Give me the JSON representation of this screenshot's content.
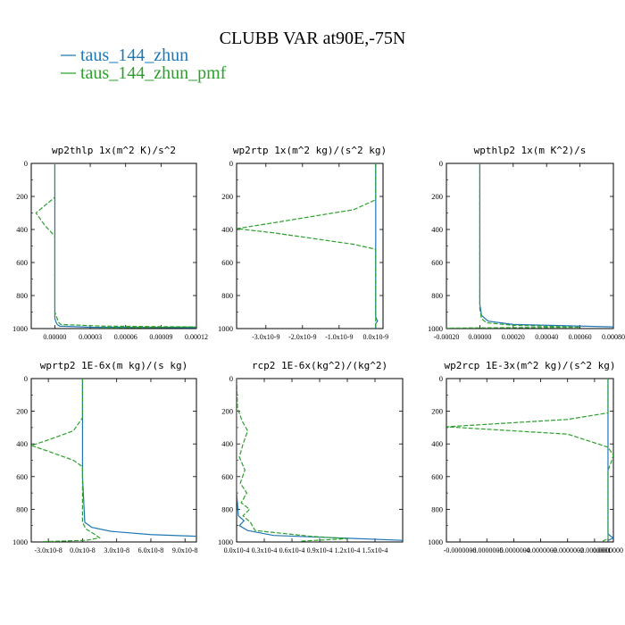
{
  "title": "CLUBB VAR at90E,-75N",
  "legend": [
    {
      "label": "taus_144_zhun",
      "color": "#1f77b4"
    },
    {
      "label": "taus_144_zhun_pmf",
      "color": "#2ca02c"
    }
  ],
  "chart_data": [
    {
      "type": "line",
      "title": "wp2thlp  1x(m^2 K)/s^2",
      "xlim": [
        -2e-05,
        0.00012
      ],
      "ylim": [
        1000,
        0
      ],
      "xticks": [
        "0.00000",
        "0.00003",
        "0.00006",
        "0.00009",
        "0.00012"
      ],
      "xtick_values": [
        0,
        3e-05,
        6e-05,
        9e-05,
        0.00012
      ],
      "yticks": [
        0,
        200,
        400,
        600,
        800,
        1000
      ],
      "series": [
        {
          "name": "taus_144_zhun",
          "x": [
            0,
            0,
            0,
            0,
            0,
            0,
            1e-06,
            2e-06,
            4e-06,
            3e-05,
            0.00012
          ],
          "y": [
            0,
            200,
            400,
            500,
            800,
            940,
            960,
            975,
            985,
            992,
            995
          ]
        },
        {
          "name": "taus_144_zhun_pmf",
          "x": [
            0,
            0,
            -1.6e-05,
            -8e-06,
            0,
            0,
            0,
            3e-06,
            5e-06,
            4e-05,
            0.00012,
            4e-05
          ],
          "y": [
            0,
            205,
            300,
            380,
            440,
            500,
            900,
            960,
            975,
            985,
            990,
            996
          ]
        }
      ]
    },
    {
      "type": "line",
      "title": "wp2rtp  1x(m^2 kg)/(s^2 kg)",
      "xlim": [
        -3.8e-09,
        2e-10
      ],
      "ylim": [
        1000,
        0
      ],
      "xticks": [
        "-3.0x10-9",
        "-2.0x10-9",
        "-1.0x10-9",
        "0.0x10-9"
      ],
      "xtick_values": [
        -3e-09,
        -2e-09,
        -1e-09,
        0
      ],
      "yticks": [
        0,
        200,
        400,
        600,
        800,
        1000
      ],
      "series": [
        {
          "name": "taus_144_zhun",
          "x": [
            0,
            0,
            0,
            0,
            0,
            5e-11,
            0,
            0
          ],
          "y": [
            0,
            200,
            400,
            600,
            930,
            955,
            970,
            1000
          ]
        },
        {
          "name": "taus_144_zhun_pmf",
          "x": [
            0,
            0,
            -6e-10,
            -2.8e-09,
            -3.8e-09,
            -2.8e-09,
            -6e-10,
            0,
            0,
            0,
            0
          ],
          "y": [
            0,
            220,
            280,
            360,
            395,
            420,
            490,
            520,
            930,
            970,
            1000
          ]
        }
      ]
    },
    {
      "type": "line",
      "title": "wpthlp2  1x(m K^2)/s",
      "xlim": [
        -0.0002,
        0.0008
      ],
      "ylim": [
        1000,
        0
      ],
      "xticks": [
        "-0.00020",
        "0.00000",
        "0.00020",
        "0.00040",
        "0.00060",
        "0.00080"
      ],
      "xtick_values": [
        -0.0002,
        0,
        0.0002,
        0.0004,
        0.0006,
        0.0008
      ],
      "yticks": [
        0,
        200,
        400,
        600,
        800,
        1000
      ],
      "series": [
        {
          "name": "taus_144_zhun",
          "x": [
            0,
            0,
            0,
            1e-05,
            5e-05,
            0.0002,
            0.0008
          ],
          "y": [
            0,
            600,
            850,
            920,
            955,
            975,
            990
          ]
        },
        {
          "name": "taus_144_zhun_pmf",
          "x": [
            0,
            0,
            0,
            1e-05,
            4e-05,
            0.0002,
            0.0006,
            -0.0002
          ],
          "y": [
            0,
            600,
            880,
            940,
            965,
            980,
            992,
            997
          ]
        }
      ]
    },
    {
      "type": "line",
      "title": "wprtp2  1E-6x(m kg)/(s kg)",
      "xlim": [
        -4.5e-08,
        1e-07
      ],
      "ylim": [
        1000,
        0
      ],
      "xticks": [
        "-3.0x10-8",
        "0.0x10-8",
        "3.0x10-8",
        "6.0x10-8",
        "9.0x10-8"
      ],
      "xtick_values": [
        -3e-08,
        0,
        3e-08,
        6e-08,
        9e-08
      ],
      "yticks": [
        0,
        200,
        400,
        600,
        800,
        1000
      ],
      "series": [
        {
          "name": "taus_144_zhun",
          "x": [
            0,
            0,
            0,
            0,
            2e-09,
            8e-09,
            2.5e-08,
            6e-08,
            1e-07
          ],
          "y": [
            0,
            200,
            400,
            600,
            880,
            910,
            935,
            955,
            965
          ]
        },
        {
          "name": "taus_144_zhun_pmf",
          "x": [
            0,
            0,
            -8e-09,
            -3.2e-08,
            -4.5e-08,
            -3.2e-08,
            -8e-09,
            0,
            0,
            3e-09,
            1e-08,
            1.5e-08,
            3e-09,
            -3.5e-08
          ],
          "y": [
            0,
            240,
            320,
            380,
            410,
            440,
            500,
            540,
            880,
            920,
            950,
            975,
            990,
            998
          ]
        }
      ]
    },
    {
      "type": "line",
      "title": "rcp2  1E-6x(kg^2)/(kg^2)",
      "xlim": [
        0,
        1.8e-14
      ],
      "ylim": [
        1000,
        0
      ],
      "xticks": [
        "0.0x10-4",
        "0.3x10-4",
        "0.6x10-4",
        "0.9x10-4",
        "1.2x10-4",
        "1.5x10-4"
      ],
      "xtick_values": [
        0,
        3e-15,
        6e-15,
        9e-15,
        1.2e-14,
        1.5e-14
      ],
      "yticks": [
        0,
        200,
        400,
        600,
        800,
        1000
      ],
      "series": [
        {
          "name": "taus_144_zhun",
          "x": [
            0,
            0,
            0,
            2e-16,
            8e-16,
            3e-16,
            1.2e-15,
            4e-15,
            1.8e-14
          ],
          "y": [
            0,
            400,
            700,
            840,
            870,
            900,
            930,
            960,
            990
          ]
        },
        {
          "name": "taus_144_zhun_pmf",
          "x": [
            0,
            1e-16,
            6e-16,
            1.2e-15,
            7e-16,
            3e-16,
            9e-16,
            4e-16,
            1.1e-15,
            5e-16,
            1.4e-15,
            7e-16,
            1.5e-15,
            2e-15,
            8e-15,
            1.2e-14,
            7e-15
          ],
          "y": [
            0,
            180,
            260,
            320,
            400,
            480,
            560,
            640,
            700,
            760,
            800,
            840,
            880,
            930,
            965,
            980,
            995
          ]
        }
      ]
    },
    {
      "type": "line",
      "title": "wp2rcp  1E-3x(m^2 kg)/(s^2 kg)",
      "xlim": [
        -6e-09,
        2e-10
      ],
      "ylim": [
        1000,
        0
      ],
      "xticks": [
        "-0.0000006",
        "-0.0000005",
        "-0.0000004",
        "-0.0000003",
        "-0.0000002",
        "-0.0000001",
        "0.0000000"
      ],
      "xtick_values": [
        -5.5e-09,
        -4.5e-09,
        -3.5e-09,
        -2.5e-09,
        -1.5e-09,
        -5e-10,
        0
      ],
      "yticks": [
        0,
        200,
        400,
        600,
        800,
        1000
      ],
      "series": [
        {
          "name": "taus_144_zhun",
          "x": [
            0,
            0,
            0,
            0,
            0,
            1e-10,
            2e-10,
            0
          ],
          "y": [
            0,
            400,
            700,
            900,
            950,
            965,
            975,
            990
          ]
        },
        {
          "name": "taus_144_zhun_pmf",
          "x": [
            0,
            0,
            -1.5e-09,
            -6e-09,
            -1.5e-09,
            0,
            2e-10,
            1e-10,
            0,
            0,
            -2e-10
          ],
          "y": [
            0,
            210,
            250,
            295,
            340,
            420,
            470,
            520,
            560,
            980,
            995
          ]
        }
      ]
    }
  ]
}
